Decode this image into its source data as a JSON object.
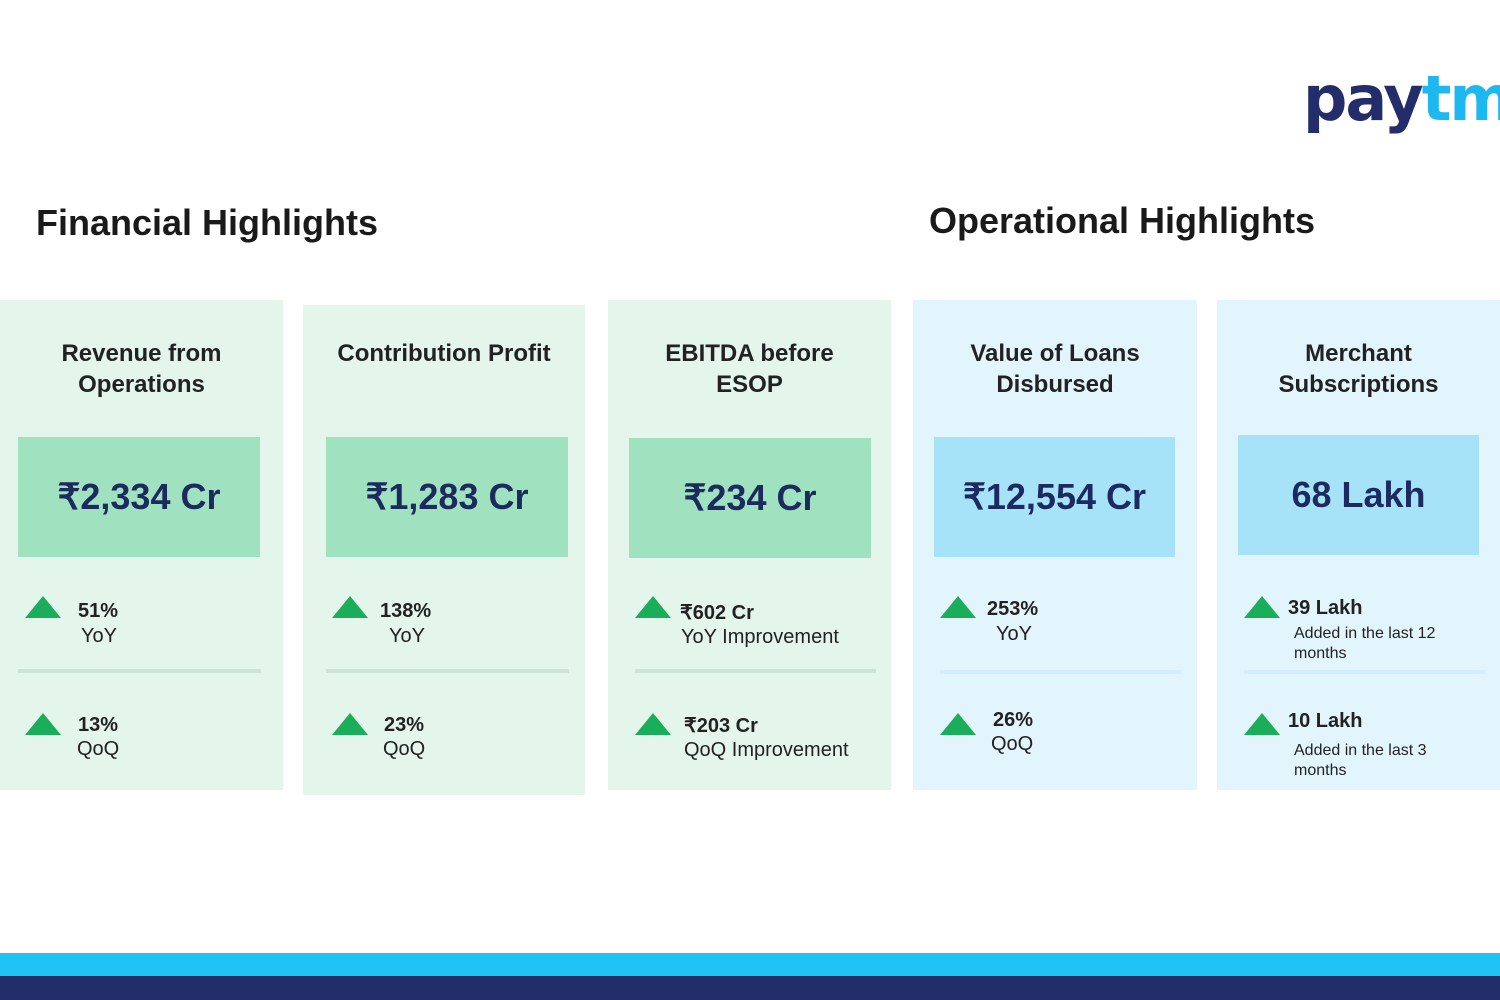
{
  "logo": {
    "text_a": "pay",
    "text_b": "tm"
  },
  "sections": {
    "financial": "Financial Highlights",
    "operational": "Operational Highlights"
  },
  "colors": {
    "green_card": "#e4f5ec",
    "green_box": "#a0e2c0",
    "blue_card": "#e3f5fc",
    "blue_box": "#a6e3f8",
    "up_arrow": "#1aae5a",
    "navy": "#232d69",
    "cyan": "#20c4f4"
  },
  "cards": [
    {
      "title": "Revenue from Operations",
      "value": "₹2,334 Cr",
      "m1": "51%",
      "s1": "YoY",
      "m2": "13%",
      "s2": "QoQ"
    },
    {
      "title": "Contribution Profit",
      "value": "₹1,283 Cr",
      "m1": "138%",
      "s1": "YoY",
      "m2": "23%",
      "s2": "QoQ"
    },
    {
      "title": "EBITDA before ESOP",
      "value": "₹234 Cr",
      "m1": "₹602 Cr",
      "s1": "YoY Improvement",
      "m2": "₹203 Cr",
      "s2": "QoQ Improvement"
    },
    {
      "title": "Value of Loans Disbursed",
      "value": "₹12,554 Cr",
      "m1": "253%",
      "s1": "YoY",
      "m2": "26%",
      "s2": "QoQ"
    },
    {
      "title": "Merchant Subscriptions",
      "value": "68 Lakh",
      "m1": "39 Lakh",
      "s1": "Added in the last 12 months",
      "m2": "10 Lakh",
      "s2": "Added in the last 3 months"
    }
  ]
}
